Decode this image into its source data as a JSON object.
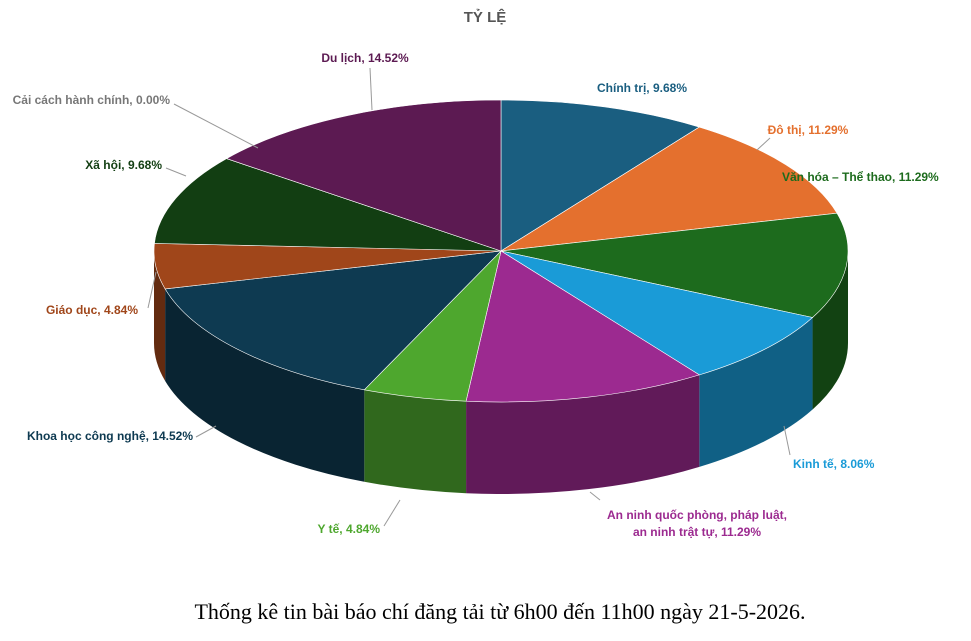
{
  "chart_data": {
    "type": "pie",
    "title": "TỶ LỆ",
    "values": [
      9.68,
      11.29,
      11.29,
      8.06,
      11.29,
      4.84,
      14.52,
      4.84,
      9.68,
      0.0,
      14.52
    ],
    "value_labels": [
      "Chính trị, 9.68%",
      "Đô thị, 11.29%",
      "Văn hóa – Thể thao, 11.29%",
      "Kinh tế, 8.06%",
      "An ninh quốc phòng, pháp luật,\nan ninh trật tự, 11.29%",
      "Y tế, 4.84%",
      "Khoa học công nghệ, 14.52%",
      "Giáo dục, 4.84%",
      "Xã hội, 9.68%",
      "Cải cách hành chính, 0.00%",
      "Du lịch, 14.52%"
    ],
    "colors": [
      "#1a5e80",
      "#e4702e",
      "#1d6b1d",
      "#1a9bd7",
      "#9c2a90",
      "#4ea72e",
      "#0e3a51",
      "#a0461a",
      "#123e12",
      "#777777",
      "#5c1a52"
    ]
  },
  "caption": "Thống kê tin bài báo chí đăng tải từ 6h00 đến 11h00 ngày 21-5-2026."
}
